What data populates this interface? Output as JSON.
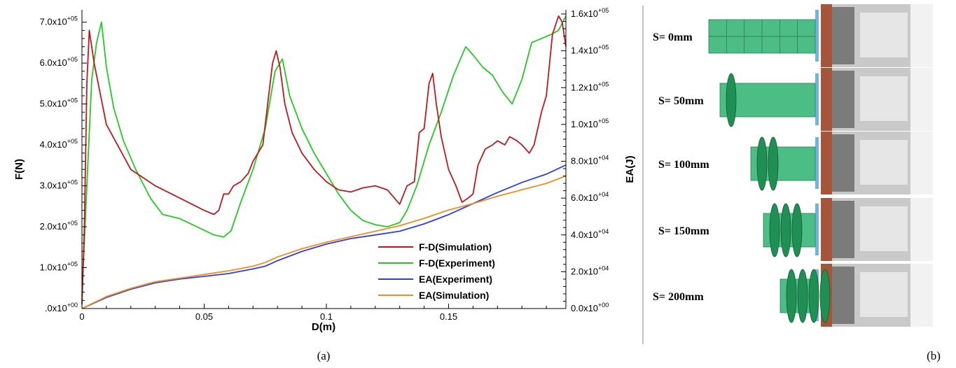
{
  "panel_labels": {
    "a": "(a)",
    "b": "(b)"
  },
  "chart_data": {
    "type": "line",
    "xlabel": "D(m)",
    "ylabel_left": "F(N)",
    "ylabel_right": "EA(J)",
    "xlim": [
      0,
      0.198
    ],
    "ylim_left": [
      0,
      720000
    ],
    "ylim_right": [
      0,
      160000
    ],
    "x_ticks": [
      {
        "value": 0,
        "label": "0"
      },
      {
        "value": 0.05,
        "label": "0.05"
      },
      {
        "value": 0.1,
        "label": "0.1"
      },
      {
        "value": 0.15,
        "label": "0.15"
      }
    ],
    "y_left_ticks": [
      {
        "value": 0,
        "label": ".0x10+00"
      },
      {
        "value": 100000,
        "label": "1.0x10+05"
      },
      {
        "value": 200000,
        "label": "2.0x10+05"
      },
      {
        "value": 300000,
        "label": "3.0x10+05"
      },
      {
        "value": 400000,
        "label": "4.0x10+05"
      },
      {
        "value": 500000,
        "label": "5.0x10+05"
      },
      {
        "value": 600000,
        "label": "6.0x10+05"
      },
      {
        "value": 700000,
        "label": "7.0x10+05"
      }
    ],
    "y_right_ticks": [
      {
        "value": 0,
        "label": "0.0x10+00"
      },
      {
        "value": 20000,
        "label": "2.0x10+04"
      },
      {
        "value": 40000,
        "label": "4.0x10+04"
      },
      {
        "value": 60000,
        "label": "6.0x10+04"
      },
      {
        "value": 80000,
        "label": "8.0x10+04"
      },
      {
        "value": 100000,
        "label": "1.0x10+05"
      },
      {
        "value": 120000,
        "label": "1.2x10+05"
      },
      {
        "value": 140000,
        "label": "1.4x10+05"
      },
      {
        "value": 160000,
        "label": "1.6x10+05"
      }
    ],
    "legend_position": "lower-right",
    "grid": false,
    "series": [
      {
        "name": "F-D(Simulation)",
        "color": "#c0181c",
        "axis": "left",
        "x": [
          0,
          0.001,
          0.002,
          0.003,
          0.005,
          0.01,
          0.02,
          0.03,
          0.04,
          0.05,
          0.054,
          0.056,
          0.058,
          0.06,
          0.062,
          0.065,
          0.068,
          0.07,
          0.072,
          0.074,
          0.076,
          0.078,
          0.0795,
          0.081,
          0.083,
          0.086,
          0.09,
          0.095,
          0.1,
          0.105,
          0.11,
          0.115,
          0.12,
          0.125,
          0.13,
          0.133,
          0.136,
          0.138,
          0.14,
          0.142,
          0.1435,
          0.145,
          0.147,
          0.15,
          0.153,
          0.1555,
          0.158,
          0.16,
          0.162,
          0.165,
          0.168,
          0.17,
          0.173,
          0.175,
          0.178,
          0.18,
          0.183,
          0.185,
          0.188,
          0.19,
          0.1925,
          0.195,
          0.1965,
          0.198
        ],
        "y": [
          10000,
          200000,
          550000,
          680000,
          600000,
          450000,
          340000,
          300000,
          270000,
          240000,
          230000,
          240000,
          280000,
          280000,
          300000,
          310000,
          330000,
          360000,
          380000,
          400000,
          500000,
          600000,
          630000,
          590000,
          500000,
          430000,
          380000,
          340000,
          310000,
          290000,
          285000,
          295000,
          300000,
          290000,
          255000,
          300000,
          310000,
          430000,
          440000,
          550000,
          575000,
          500000,
          420000,
          340000,
          300000,
          260000,
          270000,
          280000,
          350000,
          390000,
          400000,
          410000,
          400000,
          420000,
          410000,
          400000,
          380000,
          400000,
          480000,
          520000,
          670000,
          715000,
          700000,
          640000
        ]
      },
      {
        "name": "F-D(Experiment)",
        "color": "#22cc1f",
        "axis": "left",
        "x": [
          0,
          0.002,
          0.004,
          0.006,
          0.008,
          0.01,
          0.013,
          0.017,
          0.022,
          0.028,
          0.033,
          0.04,
          0.047,
          0.054,
          0.058,
          0.061,
          0.065,
          0.07,
          0.075,
          0.079,
          0.082,
          0.085,
          0.09,
          0.095,
          0.1,
          0.105,
          0.11,
          0.115,
          0.12,
          0.125,
          0.13,
          0.133,
          0.137,
          0.142,
          0.147,
          0.152,
          0.157,
          0.16,
          0.164,
          0.168,
          0.172,
          0.176,
          0.18,
          0.184,
          0.188,
          0.192,
          0.195,
          0.198
        ],
        "y": [
          30000,
          300000,
          560000,
          650000,
          700000,
          590000,
          490000,
          410000,
          340000,
          270000,
          230000,
          220000,
          200000,
          180000,
          175000,
          190000,
          260000,
          340000,
          440000,
          580000,
          610000,
          520000,
          440000,
          380000,
          330000,
          280000,
          240000,
          215000,
          205000,
          200000,
          210000,
          240000,
          300000,
          400000,
          480000,
          570000,
          640000,
          620000,
          590000,
          570000,
          530000,
          500000,
          560000,
          650000,
          660000,
          670000,
          680000,
          715000
        ]
      },
      {
        "name": "EA(Experiment)",
        "color": "#2d3ee8",
        "axis": "right",
        "x": [
          0,
          0.01,
          0.02,
          0.03,
          0.04,
          0.05,
          0.06,
          0.07,
          0.075,
          0.08,
          0.09,
          0.1,
          0.11,
          0.12,
          0.13,
          0.14,
          0.15,
          0.16,
          0.17,
          0.18,
          0.19,
          0.198
        ],
        "y": [
          0,
          6000,
          10500,
          14000,
          16000,
          17500,
          19000,
          21500,
          23000,
          26000,
          31000,
          35000,
          38000,
          40000,
          42000,
          46000,
          51000,
          57000,
          63000,
          68500,
          73000,
          78000
        ]
      },
      {
        "name": "EA(Simulation)",
        "color": "#f28c1c",
        "axis": "right",
        "x": [
          0,
          0.01,
          0.02,
          0.03,
          0.04,
          0.05,
          0.06,
          0.07,
          0.075,
          0.08,
          0.09,
          0.1,
          0.11,
          0.12,
          0.13,
          0.14,
          0.15,
          0.16,
          0.17,
          0.18,
          0.19,
          0.198
        ],
        "y": [
          0,
          6500,
          11000,
          14500,
          16500,
          18500,
          20500,
          23000,
          25000,
          28000,
          32500,
          36000,
          39000,
          42000,
          45000,
          49000,
          53500,
          57000,
          61000,
          64500,
          68000,
          72000
        ]
      }
    ]
  },
  "right_panel": {
    "stages": [
      {
        "label": "S= 0mm",
        "bulges": 0
      },
      {
        "label": "S= 50mm",
        "bulges": 1
      },
      {
        "label": "S= 100mm",
        "bulges": 2
      },
      {
        "label": "S= 150mm",
        "bulges": 3
      },
      {
        "label": "S= 200mm",
        "bulges": 4
      }
    ],
    "colors": {
      "model_green": "#4dbd86",
      "fold_green": "#1f8f53",
      "plate_blue": "#6fb5e0",
      "frame_rust": "#a4553a",
      "photo_gray": "#c9c9c9"
    }
  }
}
